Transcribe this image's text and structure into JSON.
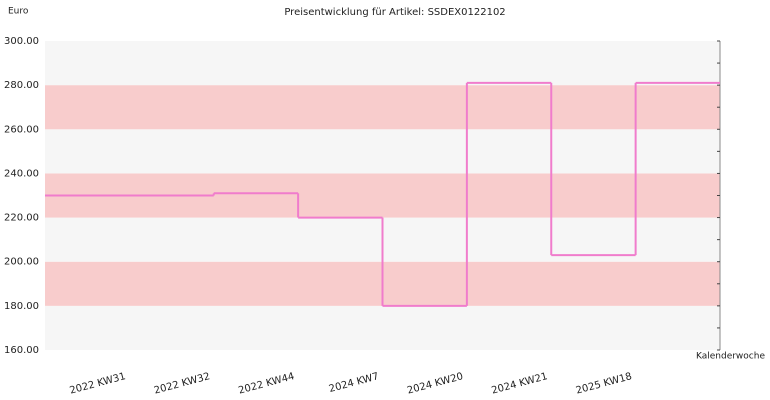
{
  "chart_data": {
    "type": "step",
    "title": "Preisentwicklung für Artikel: SSDEX0122102",
    "y_label": "Euro",
    "x_label": "Kalenderwoche",
    "categories": [
      "2022 KW31",
      "2022 KW32",
      "2022 KW44",
      "2024 KW7",
      "2024 KW20",
      "2024 KW21",
      "2025 KW18"
    ],
    "values": [
      230,
      231,
      220,
      180,
      281,
      203,
      281
    ],
    "color": "#f07ccc",
    "band_colors": [
      "#f6f6f6",
      "#f8cccc"
    ],
    "ylim": [
      160,
      300
    ],
    "yticks": [
      {
        "value": 160,
        "label": "160.00"
      },
      {
        "value": 180,
        "label": "180.00"
      },
      {
        "value": 200,
        "label": "200.00"
      },
      {
        "value": 220,
        "label": "220.00"
      },
      {
        "value": 240,
        "label": "240.00"
      },
      {
        "value": 260,
        "label": "260.00"
      },
      {
        "value": 280,
        "label": "280.00"
      },
      {
        "value": 300,
        "label": "300.00"
      }
    ]
  }
}
